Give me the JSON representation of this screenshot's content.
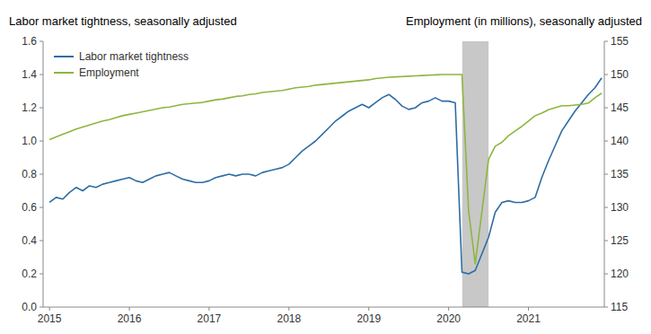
{
  "chart_data": {
    "type": "line",
    "ylabel": "Labor market tightness, seasonally adjusted",
    "y2label": "Employment (in millions), seasonally adjusted",
    "legend": "upper left",
    "recession_shade": {
      "x0": 2020.17,
      "x1": 2020.5,
      "color": "#c8c8c8"
    },
    "xlim": [
      2014.92,
      2021.95
    ],
    "xticks": [
      2015,
      2016,
      2017,
      2018,
      2019,
      2020,
      2021
    ],
    "ylim": [
      0.0,
      1.6
    ],
    "yticks": [
      {
        "value": 0.0,
        "label": "0.0"
      },
      0.2,
      0.4,
      0.6,
      0.8,
      {
        "value": 1.0,
        "label": "1.0"
      },
      1.2,
      1.4,
      1.6
    ],
    "y2lim": [
      115,
      155
    ],
    "y2ticks": [
      115,
      120,
      125,
      130,
      135,
      140,
      145,
      150,
      155
    ],
    "x": [
      2015.0,
      2015.083,
      2015.167,
      2015.25,
      2015.333,
      2015.417,
      2015.5,
      2015.583,
      2015.667,
      2015.75,
      2015.833,
      2015.917,
      2016.0,
      2016.083,
      2016.167,
      2016.25,
      2016.333,
      2016.417,
      2016.5,
      2016.583,
      2016.667,
      2016.75,
      2016.833,
      2016.917,
      2017.0,
      2017.083,
      2017.167,
      2017.25,
      2017.333,
      2017.417,
      2017.5,
      2017.583,
      2017.667,
      2017.75,
      2017.833,
      2017.917,
      2018.0,
      2018.083,
      2018.167,
      2018.25,
      2018.333,
      2018.417,
      2018.5,
      2018.583,
      2018.667,
      2018.75,
      2018.833,
      2018.917,
      2019.0,
      2019.083,
      2019.167,
      2019.25,
      2019.333,
      2019.417,
      2019.5,
      2019.583,
      2019.667,
      2019.75,
      2019.833,
      2019.917,
      2020.0,
      2020.083,
      2020.167,
      2020.25,
      2020.333,
      2020.5,
      2020.583,
      2020.667,
      2020.75,
      2020.833,
      2020.917,
      2021.0,
      2021.083,
      2021.167,
      2021.25,
      2021.333,
      2021.417,
      2021.5,
      2021.583,
      2021.667,
      2021.75,
      2021.833,
      2021.917
    ],
    "series": [
      {
        "name": "Labor market tightness",
        "color": "#2e6da4",
        "axis": "y",
        "values": [
          0.63,
          0.66,
          0.65,
          0.69,
          0.72,
          0.7,
          0.73,
          0.72,
          0.74,
          0.75,
          0.76,
          0.77,
          0.78,
          0.76,
          0.75,
          0.77,
          0.79,
          0.8,
          0.81,
          0.79,
          0.77,
          0.76,
          0.75,
          0.75,
          0.76,
          0.78,
          0.79,
          0.8,
          0.79,
          0.8,
          0.8,
          0.79,
          0.81,
          0.82,
          0.83,
          0.84,
          0.86,
          0.9,
          0.94,
          0.97,
          1.0,
          1.04,
          1.08,
          1.12,
          1.15,
          1.18,
          1.2,
          1.22,
          1.2,
          1.23,
          1.26,
          1.28,
          1.25,
          1.21,
          1.19,
          1.2,
          1.23,
          1.24,
          1.26,
          1.24,
          1.24,
          1.23,
          0.21,
          0.2,
          0.22,
          0.42,
          0.57,
          0.63,
          0.64,
          0.63,
          0.63,
          0.64,
          0.66,
          0.78,
          0.88,
          0.97,
          1.06,
          1.12,
          1.18,
          1.23,
          1.28,
          1.32,
          1.38
        ]
      },
      {
        "name": "Employment",
        "color": "#8db63f",
        "axis": "y2",
        "values": [
          140.2,
          140.6,
          141.0,
          141.4,
          141.8,
          142.1,
          142.4,
          142.7,
          143.0,
          143.2,
          143.5,
          143.8,
          144.0,
          144.2,
          144.4,
          144.6,
          144.8,
          145.0,
          145.1,
          145.3,
          145.5,
          145.6,
          145.7,
          145.8,
          146.0,
          146.2,
          146.3,
          146.5,
          146.7,
          146.8,
          147.0,
          147.1,
          147.3,
          147.4,
          147.5,
          147.6,
          147.8,
          148.0,
          148.1,
          148.2,
          148.4,
          148.5,
          148.6,
          148.7,
          148.8,
          148.9,
          149.0,
          149.1,
          149.2,
          149.4,
          149.5,
          149.6,
          149.65,
          149.7,
          149.75,
          149.8,
          149.85,
          149.9,
          149.95,
          150.0,
          150.0,
          150.0,
          150.0,
          129.5,
          121.5,
          137.2,
          139.2,
          139.8,
          140.8,
          141.5,
          142.2,
          143.0,
          143.8,
          144.2,
          144.7,
          145.0,
          145.3,
          145.3,
          145.4,
          145.5,
          145.7,
          146.5,
          147.2
        ]
      }
    ]
  }
}
